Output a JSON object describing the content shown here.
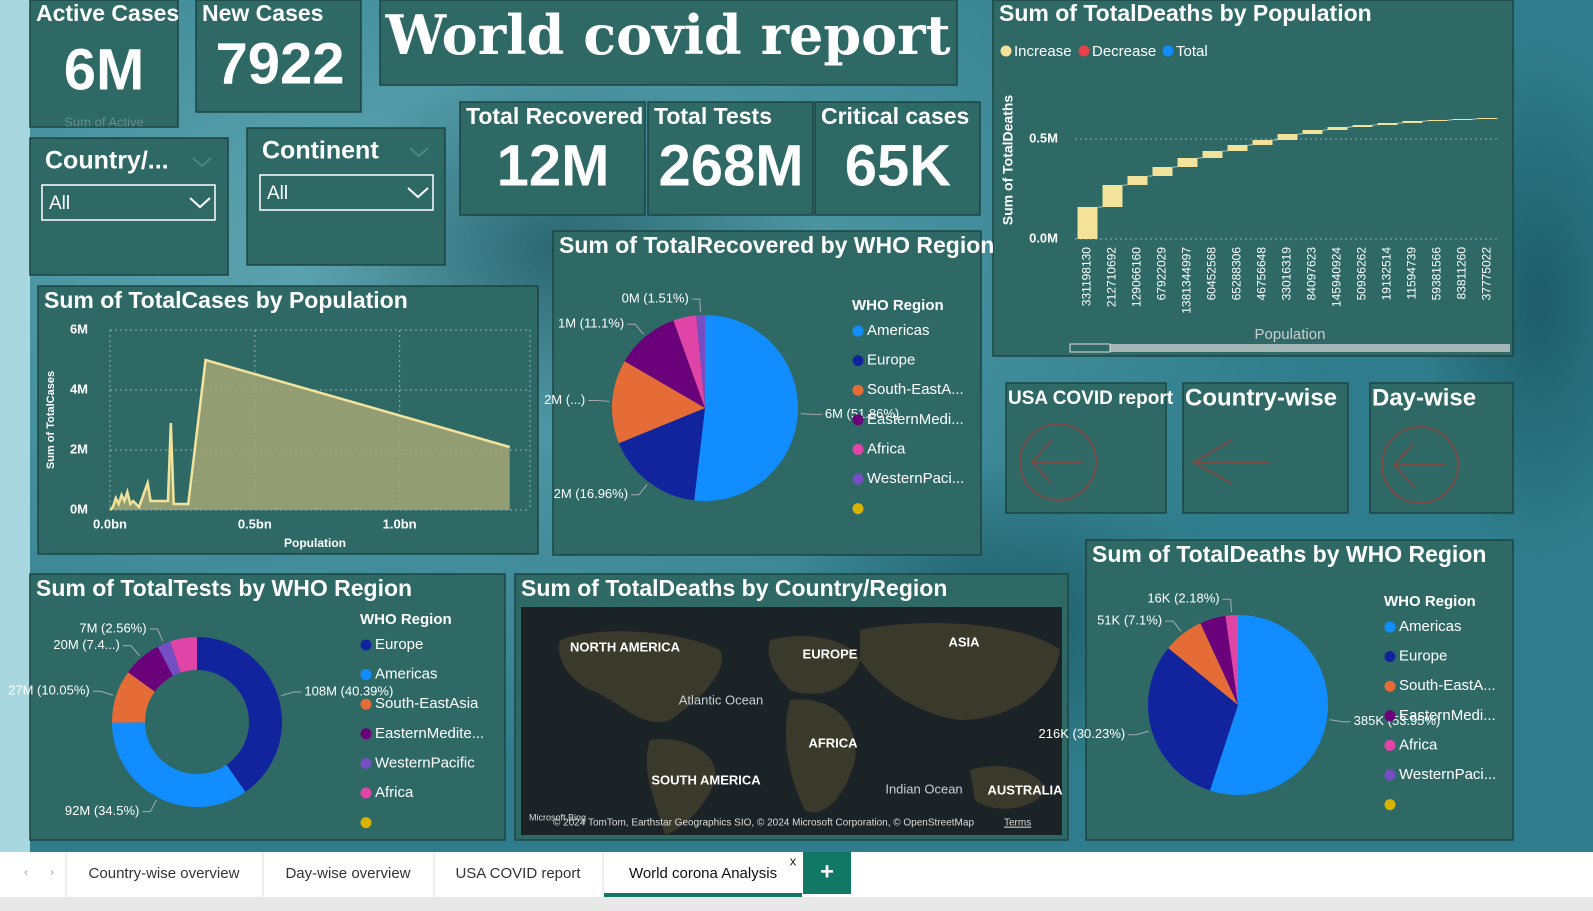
{
  "title": "World covid report",
  "cards": [
    {
      "label": "Active Cases",
      "value": "6M",
      "sublabel": "Sum of Active"
    },
    {
      "label": "New Cases",
      "value": "7922"
    },
    {
      "label": "Total Recovered",
      "value": "12M"
    },
    {
      "label": "Total Tests",
      "value": "268M"
    },
    {
      "label": "Critical cases",
      "value": "65K"
    }
  ],
  "slicers": [
    {
      "label": "Country/...",
      "value": "All"
    },
    {
      "label": "Continent",
      "value": "All"
    }
  ],
  "buttons": [
    "USA COVID report",
    "Country-wise",
    "Day-wise"
  ],
  "tabs": [
    "Country-wise overview",
    "Day-wise overview",
    "USA COVID report",
    "World corona Analysis"
  ],
  "tab_close": "x",
  "tab_add": "+",
  "map": {
    "title": "Sum of TotalDeaths by Country/Region",
    "labels": [
      "NORTH AMERICA",
      "EUROPE",
      "ASIA",
      "Atlantic Ocean",
      "AFRICA",
      "SOUTH AMERICA",
      "Indian Ocean",
      "AUSTRALIA"
    ],
    "brand": "Microsoft Bing",
    "attribution": "© 2024 TomTom, Earthstar Geographics SIO, © 2024 Microsoft Corporation, © OpenStreetMap",
    "terms": "Terms"
  },
  "chart_data": [
    {
      "type": "area",
      "title": "Sum of TotalCases by Population",
      "x_label": "Population",
      "y_label": "Sum of TotalCases",
      "x": [
        0,
        0.01,
        0.02,
        0.03,
        0.04,
        0.05,
        0.06,
        0.07,
        0.08,
        0.1,
        0.13,
        0.14,
        0.2,
        0.21,
        0.22,
        0.27,
        0.33,
        1.38
      ],
      "values": [
        0,
        100000,
        400000,
        200000,
        500000,
        300000,
        600000,
        200000,
        300000,
        100000,
        900000,
        300000,
        300000,
        2900000,
        200000,
        200000,
        5000000,
        2100000
      ],
      "color": "#f3e39a",
      "fill": "#a3a777",
      "xlim": [
        0,
        1.45
      ],
      "xticks": [
        {
          "value": 0,
          "label": "0.0bn"
        },
        {
          "value": 0.5,
          "label": "0.5bn"
        },
        {
          "value": 1,
          "label": "1.0bn"
        }
      ],
      "ylim": [
        0,
        6000000
      ],
      "yticks": [
        {
          "value": 0,
          "label": "0M"
        },
        {
          "value": 2000000,
          "label": "2M"
        },
        {
          "value": 4000000,
          "label": "4M"
        },
        {
          "value": 6000000,
          "label": "6M"
        }
      ],
      "grid": true
    },
    {
      "type": "waterfall",
      "title": "Sum of TotalDeaths by Population",
      "x_label": "Population",
      "y_label": "Sum of TotalDeaths",
      "legend": [
        {
          "name": "Increase",
          "color": "#f3e39a"
        },
        {
          "name": "Decrease",
          "color": "#e8414a"
        },
        {
          "name": "Total",
          "color": "#118dff"
        }
      ],
      "categories": [
        "331198130",
        "212710692",
        "129066160",
        "67922029",
        "1381344997",
        "60452568",
        "65288306",
        "46756648",
        "33016319",
        "84097623",
        "145940924",
        "50936262",
        "19132514",
        "11594739",
        "59381566",
        "83811260",
        "37775022"
      ],
      "values": [
        160000,
        110000,
        45000,
        45000,
        45000,
        35000,
        30000,
        25000,
        30000,
        20000,
        15000,
        10000,
        10000,
        10000,
        5000,
        5000,
        5000
      ],
      "color": "#f3e39a",
      "ylim": [
        0,
        720000
      ],
      "yticks": [
        {
          "value": 0,
          "label": "0.0M"
        },
        {
          "value": 500000,
          "label": "0.5M"
        }
      ],
      "grid": true
    },
    {
      "type": "pie",
      "title": "Sum of TotalRecovered by WHO Region",
      "legend_title": "WHO Region",
      "categories": [
        "Americas",
        "Europe",
        "South-EastA...",
        "EasternMedi...",
        "Africa",
        "WesternPaci...",
        null
      ],
      "values": [
        51.86,
        16.96,
        14.57,
        11.1,
        4.0,
        1.51,
        null
      ],
      "value_labels": [
        "6M (51.86%)",
        "2M (16.96%)",
        "2M (...)",
        "1M (11.1%)",
        null,
        "0M (1.51%)",
        null
      ],
      "colors": [
        "#118dff",
        "#12239e",
        "#e66c37",
        "#6b007b",
        "#e044a7",
        "#744ec2",
        "#d9b300"
      ]
    },
    {
      "type": "donut",
      "title": "Sum of TotalTests by WHO Region",
      "legend_title": "WHO Region",
      "categories": [
        "Europe",
        "Americas",
        "South-EastAsia",
        "EasternMedite...",
        "WesternPacific",
        "Africa",
        null
      ],
      "values": [
        40.39,
        34.5,
        10.05,
        7.4,
        2.56,
        5.1,
        null
      ],
      "value_labels": [
        "108M (40.39%)",
        "92M (34.5%)",
        "27M (10.05%)",
        "20M (7.4...)",
        "7M (2.56%)",
        null,
        null
      ],
      "colors": [
        "#12239e",
        "#118dff",
        "#e66c37",
        "#6b007b",
        "#744ec2",
        "#e044a7",
        "#d9b300"
      ]
    },
    {
      "type": "pie",
      "title": "Sum of TotalDeaths by WHO Region",
      "legend_title": "WHO Region",
      "categories": [
        "Americas",
        "Europe",
        "South-EastA...",
        "EasternMedi...",
        "Africa",
        "WesternPaci...",
        null
      ],
      "values": [
        53.95,
        30.23,
        7.1,
        4.54,
        2.18,
        null,
        null
      ],
      "value_labels": [
        "385K (53.95%)",
        "216K (30.23%)",
        "51K (7.1%)",
        null,
        "16K (2.18%)",
        null,
        null
      ],
      "colors": [
        "#118dff",
        "#12239e",
        "#e66c37",
        "#6b007b",
        "#e044a7",
        "#744ec2",
        "#d9b300"
      ]
    }
  ]
}
